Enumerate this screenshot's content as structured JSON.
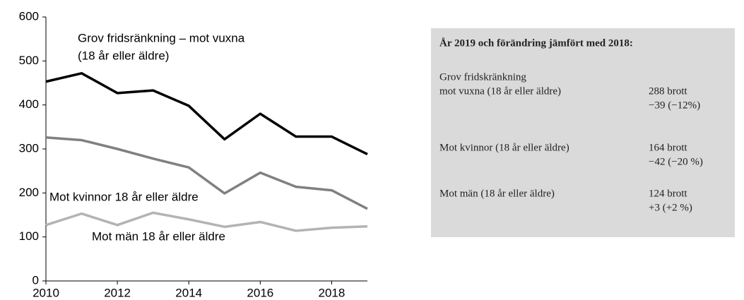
{
  "chart_data": {
    "type": "line",
    "x": [
      2010,
      2011,
      2012,
      2013,
      2014,
      2015,
      2016,
      2017,
      2018,
      2019
    ],
    "series": [
      {
        "name": "Grov fridsränkning – mot vuxna (18 år eller äldre)",
        "color": "#000000",
        "values": [
          453,
          472,
          427,
          433,
          398,
          322,
          380,
          328,
          328,
          288
        ]
      },
      {
        "name": "Mot kvinnor 18 år eller äldre",
        "color": "#808080",
        "values": [
          326,
          320,
          300,
          278,
          258,
          199,
          246,
          214,
          206,
          164
        ]
      },
      {
        "name": "Mot män 18 år eller äldre",
        "color": "#b3b3b3",
        "values": [
          127,
          153,
          127,
          155,
          140,
          123,
          134,
          114,
          121,
          124
        ]
      }
    ],
    "annotations": [
      "Grov fridsränkning – mot vuxna",
      "(18 år eller äldre)",
      "Mot kvinnor 18 år eller äldre",
      "Mot män 18 år eller äldre"
    ],
    "xlim": [
      2010,
      2019
    ],
    "xticks": [
      2010,
      2012,
      2014,
      2016,
      2018
    ],
    "ylim": [
      0,
      600
    ],
    "yticks": [
      0,
      100,
      200,
      300,
      400,
      500,
      600
    ],
    "grid": false
  },
  "info_box": {
    "title": "År 2019 och förändring jämfört med 2018:",
    "rows": [
      {
        "label": [
          "Grov fridskränkning",
          "mot vuxna (18 år eller äldre)"
        ],
        "values": [
          "288 brott",
          "−39 (−12%)"
        ]
      },
      {
        "label": [
          "Mot kvinnor (18 år eller äldre)"
        ],
        "values": [
          "164 brott",
          "−42 (−20 %)"
        ]
      },
      {
        "label": [
          "Mot män (18 år eller äldre)"
        ],
        "values": [
          "124 brott",
          "+3 (+2 %)"
        ]
      }
    ]
  }
}
